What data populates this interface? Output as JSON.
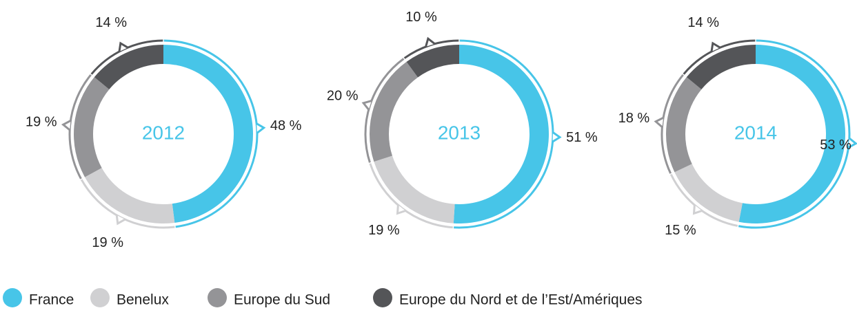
{
  "chart_data": [
    {
      "type": "pie",
      "title": "2012",
      "categories": [
        "France",
        "Benelux",
        "Europe du Sud",
        "Europe du Nord et de l’Est/Amériques"
      ],
      "values": [
        48,
        19,
        19,
        14
      ],
      "value_labels": [
        "48 %",
        "19 %",
        "19 %",
        "14 %"
      ],
      "colors": [
        "#47c5e8",
        "#d0d0d2",
        "#949497",
        "#545558"
      ]
    },
    {
      "type": "pie",
      "title": "2013",
      "categories": [
        "France",
        "Benelux",
        "Europe du Sud",
        "Europe du Nord et de l’Est/Amériques"
      ],
      "values": [
        51,
        19,
        20,
        10
      ],
      "value_labels": [
        "51 %",
        "19 %",
        "20 %",
        "10 %"
      ],
      "colors": [
        "#47c5e8",
        "#d0d0d2",
        "#949497",
        "#545558"
      ]
    },
    {
      "type": "pie",
      "title": "2014",
      "categories": [
        "France",
        "Benelux",
        "Europe du Sud",
        "Europe du Nord et de l’Est/Amériques"
      ],
      "values": [
        53,
        15,
        18,
        14
      ],
      "value_labels": [
        "53 %",
        "15 %",
        "18 %",
        "14 %"
      ],
      "colors": [
        "#47c5e8",
        "#d0d0d2",
        "#949497",
        "#545558"
      ]
    }
  ]
}
